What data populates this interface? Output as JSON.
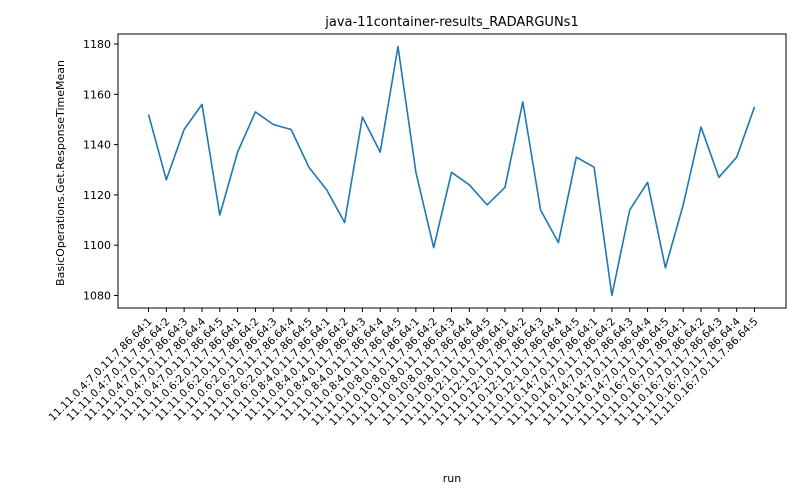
{
  "chart_data": {
    "type": "line",
    "title": "java-11container-results_RADARGUNs1",
    "xlabel": "run",
    "ylabel": "BasicOperations.Get.ResponseTimeMean",
    "ylim": [
      1075,
      1184
    ],
    "yticks": [
      1080,
      1100,
      1120,
      1140,
      1160,
      1180
    ],
    "grid": false,
    "categories": [
      "11.11.0.4:7.0.11.7.86.64:1",
      "11.11.0.4:7.0.11.7.86.64:2",
      "11.11.0.4:7.0.11.7.86.64:3",
      "11.11.0.4:7.0.11.7.86.64:4",
      "11.11.0.4:7.0.11.7.86.64:5",
      "11.11.0.6:2.0.11.7.86.64:1",
      "11.11.0.6:2.0.11.7.86.64:2",
      "11.11.0.6:2.0.11.7.86.64:3",
      "11.11.0.6:2.0.11.7.86.64:4",
      "11.11.0.6:2.0.11.7.86.64:5",
      "11.11.0.8:4.0.11.7.86.64:1",
      "11.11.0.8:4.0.11.7.86.64:2",
      "11.11.0.8:4.0.11.7.86.64:3",
      "11.11.0.8:4.0.11.7.86.64:4",
      "11.11.0.8:4.0.11.7.86.64:5",
      "11.11.0.10:8.0.11.7.86.64:1",
      "11.11.0.10:8.0.11.7.86.64:2",
      "11.11.0.10:8.0.11.7.86.64:3",
      "11.11.0.10:8.0.11.7.86.64:4",
      "11.11.0.10:8.0.11.7.86.64:5",
      "11.11.0.12:1.0.11.7.86.64:1",
      "11.11.0.12:1.0.11.7.86.64:2",
      "11.11.0.12:1.0.11.7.86.64:3",
      "11.11.0.12:1.0.11.7.86.64:4",
      "11.11.0.12:1.0.11.7.86.64:5",
      "11.11.0.14:7.0.11.7.86.64:1",
      "11.11.0.14:7.0.11.7.86.64:2",
      "11.11.0.14:7.0.11.7.86.64:3",
      "11.11.0.14:7.0.11.7.86.64:4",
      "11.11.0.14:7.0.11.7.86.64:5",
      "11.11.0.16:7.0.11.7.86.64:1",
      "11.11.0.16:7.0.11.7.86.64:2",
      "11.11.0.16:7.0.11.7.86.64:3",
      "11.11.0.16:7.0.11.7.86.64:4",
      "11.11.0.16:7.0.11.7.86.64:5"
    ],
    "series": [
      {
        "color": "#1f77b4",
        "values": [
          1152,
          1126,
          1146,
          1156,
          1112,
          1137,
          1153,
          1148,
          1146,
          1131,
          1122,
          1109,
          1151,
          1137,
          1179,
          1129,
          1099,
          1129,
          1124,
          1116,
          1123,
          1157,
          1114,
          1101,
          1135,
          1131,
          1080,
          1114,
          1125,
          1091,
          1116,
          1147,
          1127,
          1135,
          1155
        ]
      }
    ]
  }
}
